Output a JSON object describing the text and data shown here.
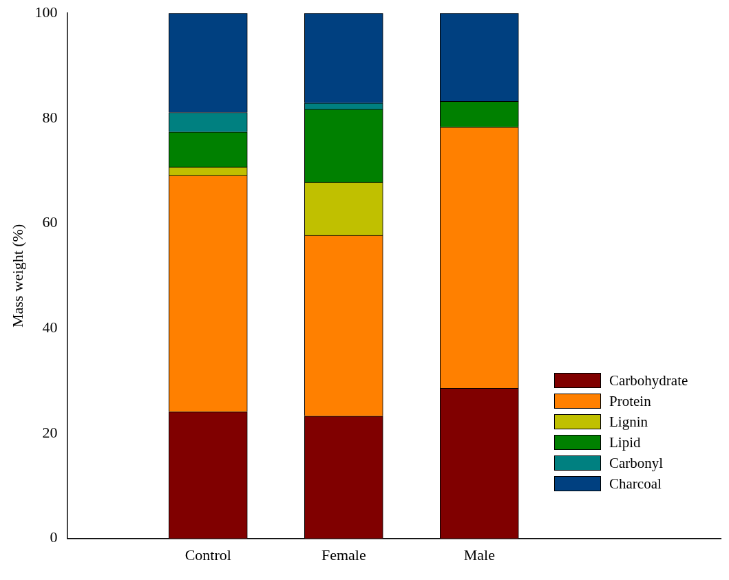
{
  "chart_data": {
    "type": "bar",
    "stacked": true,
    "ylabel": "Mass weight (%)",
    "categories": [
      "Control",
      "Female",
      "Male"
    ],
    "series": [
      {
        "name": "Carbohydrate",
        "color": "#800000",
        "values": [
          24.1,
          23.3,
          28.6
        ]
      },
      {
        "name": "Protein",
        "color": "#ff8000",
        "values": [
          45.0,
          34.4,
          49.7
        ]
      },
      {
        "name": "Lignin",
        "color": "#c0c000",
        "values": [
          1.6,
          10.1,
          0
        ]
      },
      {
        "name": "Lipid",
        "color": "#008000",
        "values": [
          6.7,
          13.9,
          4.9
        ]
      },
      {
        "name": "Carbonyl",
        "color": "#008080",
        "values": [
          3.7,
          1.2,
          0
        ]
      },
      {
        "name": "Charcoal",
        "color": "#004080",
        "values": [
          18.9,
          17.1,
          16.8
        ]
      }
    ],
    "ylim": [
      0,
      100
    ],
    "yticks": [
      0,
      20,
      40,
      60,
      80,
      100
    ],
    "grid": false,
    "legend": "bottom right"
  }
}
